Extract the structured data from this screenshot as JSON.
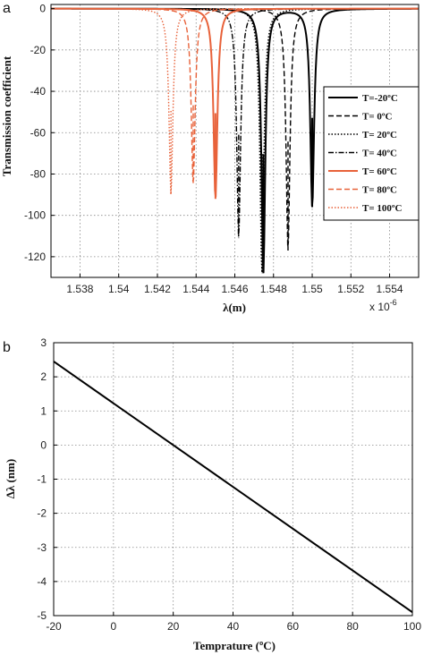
{
  "chart_data": [
    {
      "type": "line",
      "panel_label": "a",
      "xlabel": "λ(m)",
      "ylabel": "Transmission coefficient",
      "x_multiplier": "x 10",
      "x_multiplier_exp": "-6",
      "xlim": [
        1.5365,
        1.5555
      ],
      "ylim": [
        -130,
        2
      ],
      "xticks": [
        1.538,
        1.54,
        1.542,
        1.544,
        1.546,
        1.548,
        1.55,
        1.552,
        1.554
      ],
      "xtick_labels": [
        "1.538",
        "1.54",
        "1.542",
        "1.544",
        "1.546",
        "1.548",
        "1.55",
        "1.552",
        "1.554"
      ],
      "yticks": [
        0,
        -20,
        -40,
        -60,
        -80,
        -100,
        -120
      ],
      "ytick_labels": [
        "0",
        "-20",
        "-40",
        "-60",
        "-80",
        "-100",
        "-120"
      ],
      "grid": true,
      "legend_position": "right",
      "series": [
        {
          "name": "T=-20ºC",
          "color": "#000000",
          "dash": "solid",
          "width": 2.0,
          "dips": [
            {
              "center": 1.547475,
              "depth": -128
            },
            {
              "center": 1.55,
              "depth": -96
            }
          ]
        },
        {
          "name": "T=  0ºC",
          "color": "#000000",
          "dash": "dashed",
          "width": 1.4,
          "dips": [
            {
              "center": 1.54875,
              "depth": -117
            }
          ]
        },
        {
          "name": "T=  20ºC",
          "color": "#000000",
          "dash": "dotted",
          "width": 1.4,
          "dips": [
            {
              "center": 1.5474,
              "depth": -128
            }
          ]
        },
        {
          "name": "T=  40ºC",
          "color": "#000000",
          "dash": "dashdot",
          "width": 1.4,
          "dips": [
            {
              "center": 1.5462,
              "depth": -111
            }
          ]
        },
        {
          "name": "T=  60ºC",
          "color": "#e8623a",
          "dash": "solid",
          "width": 2.0,
          "dips": [
            {
              "center": 1.545,
              "depth": -92
            }
          ]
        },
        {
          "name": "T=  80ºC",
          "color": "#e8623a",
          "dash": "dashed",
          "width": 1.4,
          "dips": [
            {
              "center": 1.54385,
              "depth": -85
            }
          ]
        },
        {
          "name": "T=  100ºC",
          "color": "#e8623a",
          "dash": "dotted",
          "width": 1.4,
          "dips": [
            {
              "center": 1.5427,
              "depth": -90
            }
          ]
        }
      ]
    },
    {
      "type": "line",
      "panel_label": "b",
      "xlabel": "Temprature (ºC)",
      "ylabel": "Δλ (nm)",
      "xlim": [
        -20,
        100
      ],
      "ylim": [
        -5,
        3
      ],
      "xticks": [
        -20,
        0,
        20,
        40,
        60,
        80,
        100
      ],
      "xtick_labels": [
        "-20",
        "0",
        "20",
        "40",
        "60",
        "80",
        "100"
      ],
      "yticks": [
        3,
        2,
        1,
        0,
        -1,
        -2,
        -3,
        -4,
        -5
      ],
      "ytick_labels": [
        "3",
        "2",
        "1",
        "0",
        "-1",
        "-2",
        "-3",
        "-4",
        "-5"
      ],
      "grid": true,
      "series": [
        {
          "color": "#000000",
          "x": [
            -20,
            100
          ],
          "y": [
            2.45,
            -4.9
          ]
        }
      ]
    }
  ]
}
